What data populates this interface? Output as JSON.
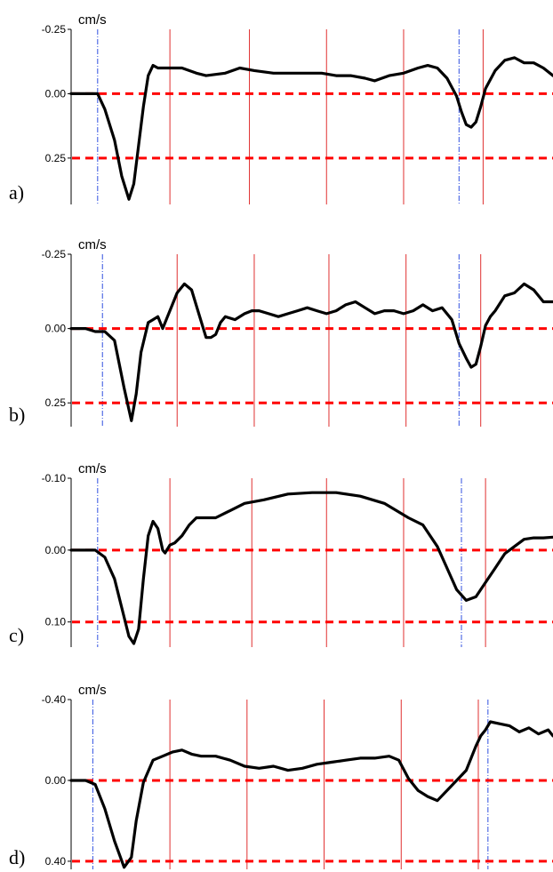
{
  "chart_data": [
    {
      "type": "line",
      "panel_label": "a)",
      "unit_label": "cm/s",
      "title": "",
      "y_tick_labels": [
        "-0.25",
        "0.00",
        "0.25"
      ],
      "y_ticks": [
        -0.25,
        0.0,
        0.25
      ],
      "ylim": [
        -0.25,
        0.43
      ],
      "xlim": [
        0,
        100
      ],
      "y_inverted": true,
      "reference_lines": [
        0.0,
        0.25
      ],
      "red_event_lines_x": [
        20.5,
        37,
        53,
        69,
        85.5
      ],
      "blue_event_lines_x": [
        5.5,
        80.5
      ],
      "series": [
        {
          "x": [
            0,
            4,
            5.5,
            7,
            9,
            10.5,
            12,
            13,
            14,
            15,
            16,
            17,
            18,
            20,
            23,
            26,
            28,
            32,
            35,
            38,
            42,
            45,
            48,
            52,
            55,
            58,
            61,
            63,
            66,
            69,
            72,
            74,
            76,
            78,
            80,
            81,
            82,
            83,
            84,
            85,
            86,
            88,
            90,
            92,
            94,
            96,
            98,
            100
          ],
          "y": [
            0,
            0,
            0,
            0.06,
            0.18,
            0.32,
            0.41,
            0.35,
            0.2,
            0.05,
            -0.07,
            -0.11,
            -0.1,
            -0.1,
            -0.1,
            -0.08,
            -0.07,
            -0.08,
            -0.1,
            -0.09,
            -0.08,
            -0.08,
            -0.08,
            -0.08,
            -0.07,
            -0.07,
            -0.06,
            -0.05,
            -0.07,
            -0.08,
            -0.1,
            -0.11,
            -0.1,
            -0.06,
            0.01,
            0.07,
            0.12,
            0.13,
            0.11,
            0.05,
            -0.02,
            -0.09,
            -0.13,
            -0.14,
            -0.12,
            -0.12,
            -0.1,
            -0.07
          ]
        }
      ]
    },
    {
      "type": "line",
      "panel_label": "b)",
      "unit_label": "cm/s",
      "title": "",
      "y_tick_labels": [
        "-0.25",
        "0.00",
        "0.25"
      ],
      "y_ticks": [
        -0.25,
        0.0,
        0.25
      ],
      "ylim": [
        -0.25,
        0.33
      ],
      "xlim": [
        0,
        100
      ],
      "y_inverted": true,
      "reference_lines": [
        0.0,
        0.25
      ],
      "red_event_lines_x": [
        22,
        38,
        53.5,
        69.5,
        85
      ],
      "blue_event_lines_x": [
        6.5,
        80.5
      ],
      "series": [
        {
          "x": [
            0,
            3,
            5,
            7,
            9,
            11,
            12.5,
            13.5,
            14.5,
            16,
            17,
            18,
            19,
            20,
            21,
            22,
            23.5,
            25,
            26.5,
            28,
            29,
            30,
            31,
            32,
            34,
            36,
            37.5,
            39,
            41,
            43,
            45,
            47,
            49,
            51,
            53,
            55,
            57,
            59,
            61,
            63,
            65,
            67,
            69,
            71,
            73,
            75,
            77,
            79,
            80.5,
            82,
            83,
            84,
            85,
            86,
            87,
            88,
            90,
            92,
            94,
            96,
            98,
            100
          ],
          "y": [
            0,
            0,
            0.01,
            0.01,
            0.04,
            0.2,
            0.31,
            0.22,
            0.08,
            -0.02,
            -0.03,
            -0.04,
            0.0,
            -0.04,
            -0.08,
            -0.12,
            -0.15,
            -0.13,
            -0.05,
            0.03,
            0.03,
            0.02,
            -0.02,
            -0.04,
            -0.03,
            -0.05,
            -0.06,
            -0.06,
            -0.05,
            -0.04,
            -0.05,
            -0.06,
            -0.07,
            -0.06,
            -0.05,
            -0.06,
            -0.08,
            -0.09,
            -0.07,
            -0.05,
            -0.06,
            -0.06,
            -0.05,
            -0.06,
            -0.08,
            -0.06,
            -0.07,
            -0.03,
            0.05,
            0.1,
            0.13,
            0.12,
            0.06,
            -0.01,
            -0.04,
            -0.06,
            -0.11,
            -0.12,
            -0.15,
            -0.13,
            -0.09,
            -0.09
          ]
        }
      ]
    },
    {
      "type": "line",
      "panel_label": "c)",
      "unit_label": "cm/s",
      "title": "",
      "y_tick_labels": [
        "-0.10",
        "0.00",
        "0.10"
      ],
      "y_ticks": [
        -0.1,
        0.0,
        0.1
      ],
      "ylim": [
        -0.1,
        0.135
      ],
      "xlim": [
        0,
        100
      ],
      "y_inverted": true,
      "reference_lines": [
        0.0,
        0.1
      ],
      "red_event_lines_x": [
        20.5,
        37.5,
        53,
        69,
        86
      ],
      "blue_event_lines_x": [
        5.5,
        81
      ],
      "series": [
        {
          "x": [
            0,
            3,
            5,
            7,
            9,
            10.5,
            12,
            13,
            14,
            15,
            16,
            17,
            18,
            19,
            19.5,
            20.5,
            21.5,
            23,
            24.5,
            26,
            28,
            30,
            33,
            36,
            40,
            45,
            50,
            55,
            60,
            65,
            70,
            73,
            76,
            78,
            80,
            82,
            84,
            86,
            88,
            90,
            92,
            94,
            96,
            98,
            100
          ],
          "y": [
            0,
            0,
            0,
            0.01,
            0.04,
            0.08,
            0.12,
            0.13,
            0.11,
            0.04,
            -0.02,
            -0.04,
            -0.03,
            0.0,
            0.004,
            -0.007,
            -0.01,
            -0.02,
            -0.035,
            -0.045,
            -0.045,
            -0.045,
            -0.055,
            -0.065,
            -0.07,
            -0.078,
            -0.08,
            -0.08,
            -0.075,
            -0.065,
            -0.045,
            -0.035,
            -0.005,
            0.025,
            0.055,
            0.07,
            0.065,
            0.045,
            0.025,
            0.005,
            -0.005,
            -0.015,
            -0.017,
            -0.017,
            -0.018
          ]
        }
      ]
    },
    {
      "type": "line",
      "panel_label": "d)",
      "unit_label": "cm/s",
      "title": "",
      "y_tick_labels": [
        "-0.40",
        "0.00",
        "0.40"
      ],
      "y_ticks": [
        -0.4,
        0.0,
        0.4
      ],
      "ylim": [
        -0.4,
        0.44
      ],
      "xlim": [
        0,
        100
      ],
      "y_inverted": true,
      "reference_lines": [
        0.0,
        0.4
      ],
      "red_event_lines_x": [
        20.5,
        36.5,
        52.5,
        68.5,
        84.5
      ],
      "blue_event_lines_x": [
        4.5,
        86.5
      ],
      "series": [
        {
          "x": [
            0,
            3,
            5,
            7,
            9,
            11,
            12.5,
            13.5,
            15,
            17,
            19,
            21,
            23,
            25,
            27,
            30,
            33,
            36,
            39,
            42,
            45,
            48,
            51,
            54,
            57,
            60,
            63,
            66,
            68,
            70,
            72,
            74,
            76,
            78,
            80,
            82,
            84,
            85,
            86,
            87,
            89,
            91,
            93,
            95,
            97,
            99,
            100
          ],
          "y": [
            0,
            0,
            0.02,
            0.14,
            0.3,
            0.43,
            0.38,
            0.2,
            0.01,
            -0.1,
            -0.12,
            -0.14,
            -0.15,
            -0.13,
            -0.12,
            -0.12,
            -0.1,
            -0.07,
            -0.06,
            -0.07,
            -0.05,
            -0.06,
            -0.08,
            -0.09,
            -0.1,
            -0.11,
            -0.11,
            -0.12,
            -0.1,
            -0.01,
            0.05,
            0.08,
            0.1,
            0.05,
            0.0,
            -0.05,
            -0.17,
            -0.22,
            -0.25,
            -0.29,
            -0.28,
            -0.27,
            -0.24,
            -0.26,
            -0.23,
            -0.25,
            -0.22
          ]
        }
      ]
    }
  ]
}
